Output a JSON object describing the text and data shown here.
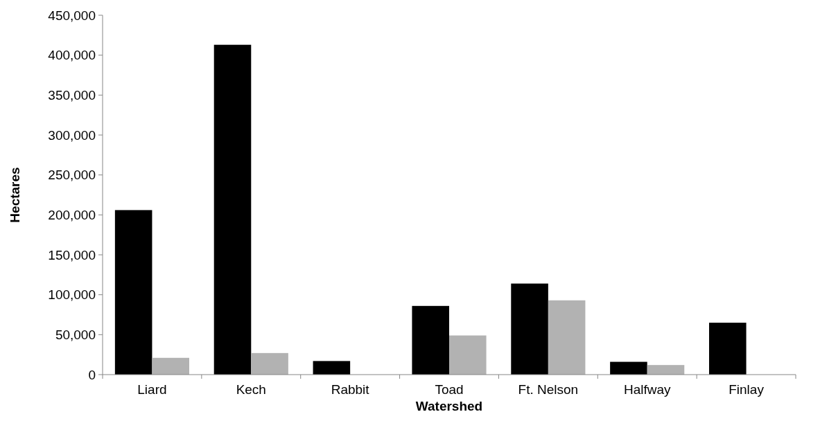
{
  "chart_data": {
    "type": "bar",
    "xlabel": "Watershed",
    "ylabel": "Hectares",
    "categories": [
      "Liard",
      "Kech",
      "Rabbit",
      "Toad",
      "Ft. Nelson",
      "Halfway",
      "Finlay"
    ],
    "series": [
      {
        "color": "#000000",
        "values": [
          206000,
          413000,
          17000,
          86000,
          114000,
          16000,
          65000
        ]
      },
      {
        "color": "#b2b2b2",
        "values": [
          21000,
          27000,
          0,
          49000,
          93000,
          12000,
          0
        ]
      }
    ],
    "ylim": [
      0,
      450000
    ],
    "yticks": [
      {
        "value": 0,
        "label": "0"
      },
      {
        "value": 50000,
        "label": "50,000"
      },
      {
        "value": 100000,
        "label": "100,000"
      },
      {
        "value": 150000,
        "label": "150,000"
      },
      {
        "value": 200000,
        "label": "200,000"
      },
      {
        "value": 250000,
        "label": "250,000"
      },
      {
        "value": 300000,
        "label": "300,000"
      },
      {
        "value": 350000,
        "label": "350,000"
      },
      {
        "value": 400000,
        "label": "400,000"
      },
      {
        "value": 450000,
        "label": "450,000"
      }
    ],
    "grid": false
  }
}
